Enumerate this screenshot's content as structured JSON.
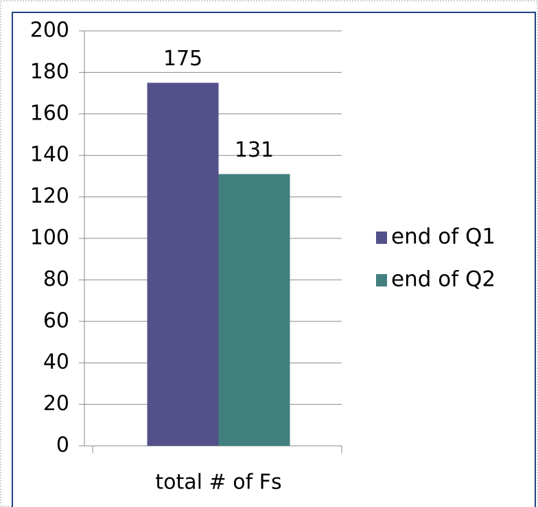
{
  "chart_data": {
    "type": "bar",
    "categories": [
      "total # of Fs"
    ],
    "series": [
      {
        "name": "end of Q1",
        "color": "#53508a",
        "values": [
          175
        ]
      },
      {
        "name": "end of Q2",
        "color": "#427f7f",
        "values": [
          131
        ]
      }
    ],
    "ylim": [
      0,
      200
    ],
    "yticks": [
      0,
      20,
      40,
      60,
      80,
      100,
      120,
      140,
      160,
      180,
      200
    ],
    "grid": true,
    "legend": "right",
    "data_labels": true
  }
}
